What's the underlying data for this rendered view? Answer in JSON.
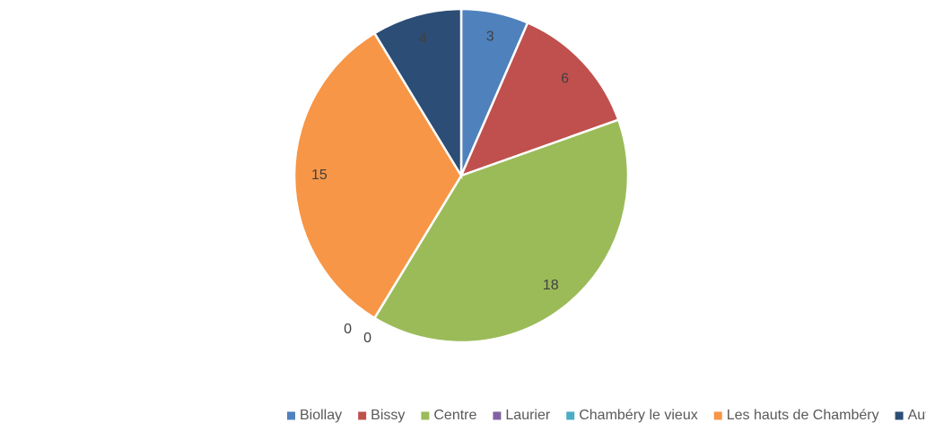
{
  "chart_data": {
    "type": "pie",
    "categories": [
      "Biollay",
      "Bissy",
      "Centre",
      "Laurier",
      "Chambéry le vieux",
      "Les hauts de Chambéry",
      "Autre"
    ],
    "values": [
      3,
      6,
      18,
      0,
      0,
      15,
      4
    ],
    "colors": [
      "#4f81bd",
      "#c0504d",
      "#9bbb59",
      "#8064a2",
      "#4bacc6",
      "#f79646",
      "#2c4d75"
    ],
    "legend": "bottom"
  }
}
